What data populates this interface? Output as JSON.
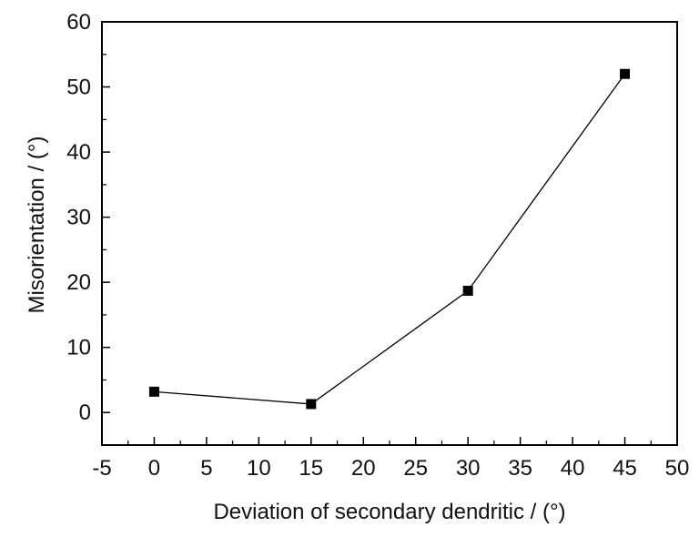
{
  "chart_data": {
    "type": "line",
    "title": "",
    "xlabel": "Deviation of secondary dendritic / (°)",
    "ylabel": "Misorientation / (°)",
    "xlim": [
      -5,
      50
    ],
    "ylim": [
      -5,
      60
    ],
    "x_ticks": [
      -5,
      0,
      5,
      10,
      15,
      20,
      25,
      30,
      35,
      40,
      45,
      50
    ],
    "y_ticks": [
      0,
      10,
      20,
      30,
      40,
      50,
      60
    ],
    "grid": false,
    "legend": "none",
    "series": [
      {
        "x": [
          0,
          15,
          30,
          45
        ],
        "y": [
          3.2,
          1.3,
          18.7,
          52.0
        ],
        "marker": "square",
        "color": "#000000"
      }
    ]
  }
}
